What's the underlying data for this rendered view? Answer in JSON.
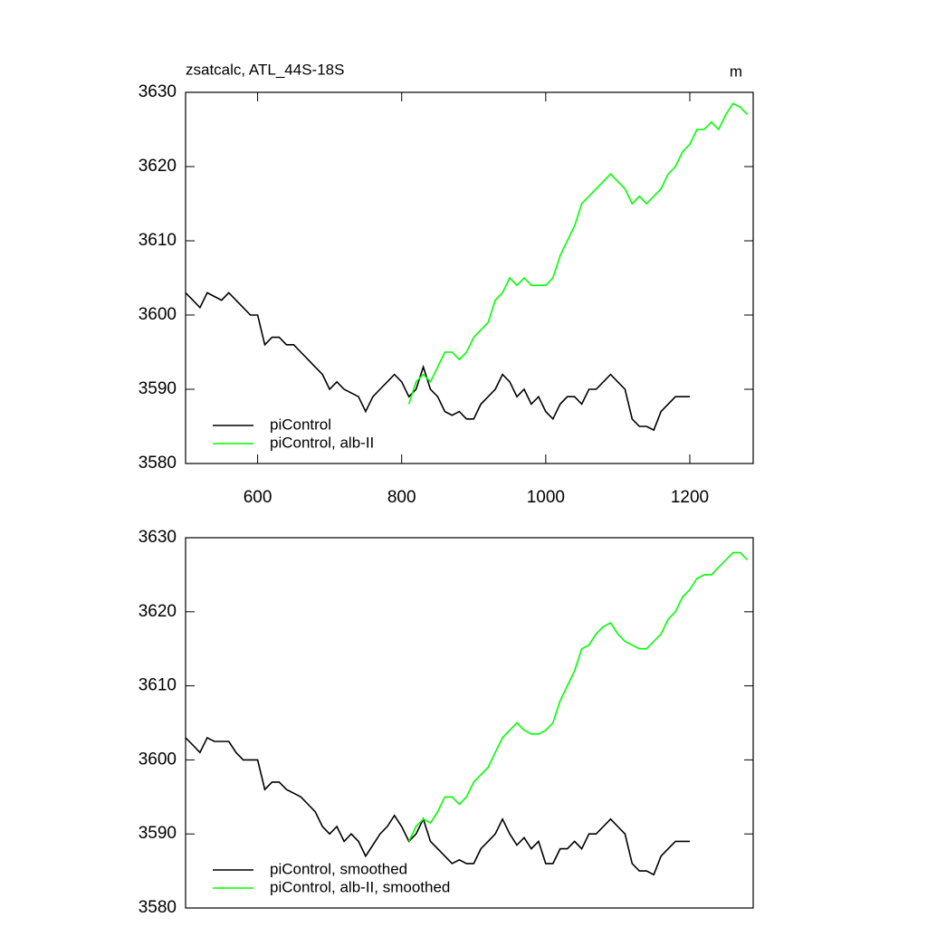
{
  "chart_data": [
    {
      "type": "line",
      "title": "zsatcalc, ATL_44S-18S",
      "units": "m",
      "xlim": [
        500,
        1288
      ],
      "xticks": [
        600,
        800,
        1000,
        1200
      ],
      "ylim": [
        3580,
        3630
      ],
      "yticks": [
        3580,
        3590,
        3600,
        3610,
        3620,
        3630
      ],
      "legend": "lower left",
      "series": [
        {
          "name": "piControl",
          "color": "#000000",
          "x": [
            500,
            510,
            520,
            530,
            540,
            550,
            560,
            570,
            580,
            590,
            600,
            610,
            620,
            630,
            640,
            650,
            660,
            670,
            680,
            690,
            700,
            710,
            720,
            730,
            740,
            750,
            760,
            770,
            780,
            790,
            800,
            810,
            820,
            830,
            840,
            850,
            860,
            870,
            880,
            890,
            900,
            910,
            920,
            930,
            940,
            950,
            960,
            970,
            980,
            990,
            1000,
            1010,
            1020,
            1030,
            1040,
            1050,
            1060,
            1070,
            1080,
            1090,
            1100,
            1110,
            1120,
            1130,
            1140,
            1150,
            1160,
            1170,
            1180,
            1190,
            1200
          ],
          "values": [
            3603,
            3602,
            3601,
            3603,
            3602.5,
            3602,
            3603,
            3602,
            3601,
            3600,
            3600,
            3596,
            3597,
            3597,
            3596,
            3596,
            3595,
            3594,
            3593,
            3592,
            3590,
            3591,
            3590,
            3589.5,
            3589,
            3587,
            3589,
            3590,
            3591,
            3592,
            3591,
            3589,
            3590,
            3593,
            3590,
            3589,
            3587,
            3586.5,
            3587,
            3586,
            3586,
            3588,
            3589,
            3590,
            3592,
            3591,
            3589,
            3590,
            3588,
            3589,
            3587,
            3586,
            3588,
            3589,
            3589,
            3588,
            3590,
            3590,
            3591,
            3592,
            3591,
            3590,
            3586,
            3585,
            3585,
            3584.5,
            3587,
            3588,
            3589,
            3589,
            3589
          ]
        },
        {
          "name": "piControl, alb-II",
          "color": "#00ff00",
          "x": [
            810,
            820,
            830,
            840,
            850,
            860,
            870,
            880,
            890,
            900,
            910,
            920,
            930,
            940,
            950,
            960,
            970,
            980,
            990,
            1000,
            1010,
            1020,
            1030,
            1040,
            1050,
            1060,
            1070,
            1080,
            1090,
            1100,
            1110,
            1120,
            1130,
            1140,
            1150,
            1160,
            1170,
            1180,
            1190,
            1200,
            1210,
            1220,
            1230,
            1240,
            1250,
            1260,
            1270,
            1280
          ],
          "values": [
            3588,
            3591,
            3592,
            3591,
            3593,
            3595,
            3595,
            3594,
            3595,
            3597,
            3598,
            3599,
            3602,
            3603,
            3605,
            3604,
            3605,
            3604,
            3604,
            3604,
            3605,
            3608,
            3610,
            3612,
            3615,
            3616,
            3617,
            3618,
            3619,
            3618,
            3617,
            3615,
            3616,
            3615,
            3616,
            3617,
            3619,
            3620,
            3622,
            3623,
            3625,
            3625,
            3626,
            3625,
            3627,
            3628.5,
            3628,
            3627
          ]
        }
      ]
    },
    {
      "type": "line",
      "xlim": [
        500,
        1288
      ],
      "ylim": [
        3580,
        3630
      ],
      "yticks": [
        3580,
        3590,
        3600,
        3610,
        3620,
        3630
      ],
      "legend": "lower left",
      "series": [
        {
          "name": "piControl, smoothed",
          "color": "#000000",
          "x": [
            500,
            510,
            520,
            530,
            540,
            550,
            560,
            570,
            580,
            590,
            600,
            610,
            620,
            630,
            640,
            650,
            660,
            670,
            680,
            690,
            700,
            710,
            720,
            730,
            740,
            750,
            760,
            770,
            780,
            790,
            800,
            810,
            820,
            830,
            840,
            850,
            860,
            870,
            880,
            890,
            900,
            910,
            920,
            930,
            940,
            950,
            960,
            970,
            980,
            990,
            1000,
            1010,
            1020,
            1030,
            1040,
            1050,
            1060,
            1070,
            1080,
            1090,
            1100,
            1110,
            1120,
            1130,
            1140,
            1150,
            1160,
            1170,
            1180,
            1190,
            1200
          ],
          "values": [
            3603,
            3602,
            3601,
            3603,
            3602.5,
            3602.5,
            3602.5,
            3601,
            3600,
            3600,
            3600,
            3596,
            3597,
            3597,
            3596,
            3595.5,
            3595,
            3594,
            3593,
            3591,
            3590,
            3591,
            3589,
            3590,
            3589,
            3587,
            3588.5,
            3590,
            3591,
            3592.5,
            3591,
            3589,
            3590,
            3592,
            3589,
            3588,
            3587,
            3586,
            3586.5,
            3586,
            3586,
            3588,
            3589,
            3590,
            3592,
            3590,
            3588.5,
            3589.5,
            3588,
            3589,
            3586,
            3586,
            3588,
            3588,
            3589,
            3588,
            3590,
            3590,
            3591,
            3592,
            3591,
            3590,
            3586,
            3585,
            3585,
            3584.5,
            3587,
            3588,
            3589,
            3589,
            3589
          ]
        },
        {
          "name": "piControl, alb-II, smoothed",
          "color": "#00ff00",
          "x": [
            810,
            820,
            830,
            840,
            850,
            860,
            870,
            880,
            890,
            900,
            910,
            920,
            930,
            940,
            950,
            960,
            970,
            980,
            990,
            1000,
            1010,
            1020,
            1030,
            1040,
            1050,
            1060,
            1070,
            1080,
            1090,
            1100,
            1110,
            1120,
            1130,
            1140,
            1150,
            1160,
            1170,
            1180,
            1190,
            1200,
            1210,
            1220,
            1230,
            1240,
            1250,
            1260,
            1270,
            1280
          ],
          "values": [
            3589,
            3591,
            3592,
            3591.5,
            3593,
            3595,
            3595,
            3594,
            3595,
            3597,
            3598,
            3599,
            3601,
            3603,
            3604,
            3605,
            3604,
            3603.5,
            3603.5,
            3604,
            3605,
            3608,
            3610,
            3612,
            3615,
            3615.5,
            3617,
            3618,
            3618.5,
            3617,
            3616,
            3615.5,
            3615,
            3615,
            3616,
            3617,
            3619,
            3620,
            3622,
            3623,
            3624.5,
            3625,
            3625,
            3626,
            3627,
            3628,
            3628,
            3627
          ]
        }
      ]
    }
  ]
}
